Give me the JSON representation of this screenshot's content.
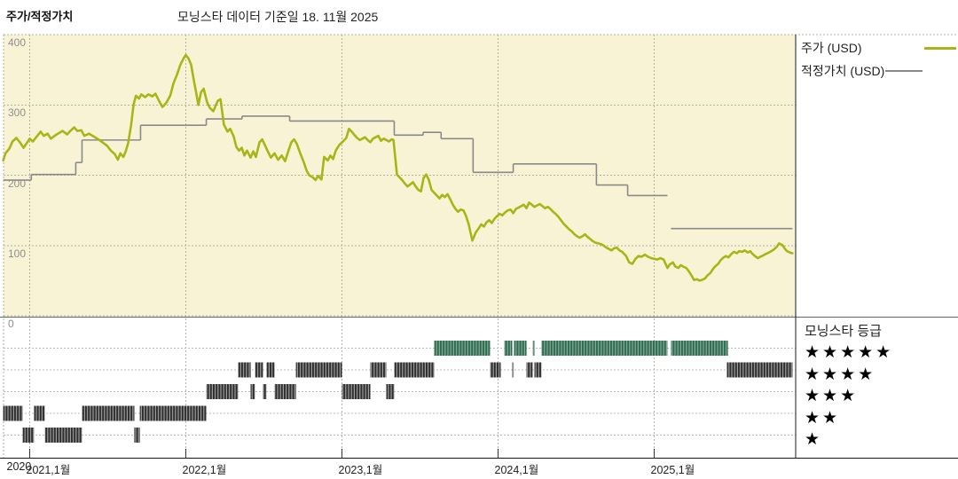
{
  "header": {
    "title": "주가/적정가치",
    "as_of": "모닝스타 데이터 기준일 18. 11월 2025"
  },
  "chart_data": {
    "type": "line",
    "title": "주가/적정가치",
    "as_of_label": "모닝스타 데이터 기준일 18. 11월 2025",
    "x_axis": {
      "range": [
        2020.82,
        2025.95
      ],
      "gridline_years": [
        2021,
        2022,
        2023,
        2024,
        2025
      ],
      "labels": [
        {
          "t": 2020.875,
          "text": "2020"
        },
        {
          "t": 2021.0,
          "text": "2021,1월"
        },
        {
          "t": 2022.0,
          "text": "2022,1월"
        },
        {
          "t": 2023.0,
          "text": "2023,1월"
        },
        {
          "t": 2024.0,
          "text": "2024,1월"
        },
        {
          "t": 2025.0,
          "text": "2025,1월"
        }
      ]
    },
    "y_axis": {
      "ticks": [
        0,
        100,
        200,
        300,
        400
      ],
      "range": [
        0,
        440
      ],
      "unit": "USD"
    },
    "colors": {
      "plot_bg": "#f7f3d4",
      "grid": "#b2b2a6",
      "price": "#a9b516",
      "fair_value": "#8a8a8a",
      "rating_five_stripe": "#2f6b51",
      "rating_five_bg": "#84ac98",
      "rating_other_stripe": "#2d2d2d",
      "rating_other_bg": "#9f9f9f",
      "axis": "#1a1a1a"
    },
    "price": {
      "name": "주가 (USD)",
      "points": [
        [
          2020.83,
          221
        ],
        [
          2020.845,
          231
        ],
        [
          2020.87,
          238
        ],
        [
          2020.89,
          248
        ],
        [
          2020.915,
          253
        ],
        [
          2020.94,
          246
        ],
        [
          2020.96,
          239
        ],
        [
          2020.985,
          247
        ],
        [
          2021.0,
          252
        ],
        [
          2021.02,
          248
        ],
        [
          2021.045,
          255
        ],
        [
          2021.07,
          262
        ],
        [
          2021.09,
          256
        ],
        [
          2021.115,
          259
        ],
        [
          2021.135,
          252
        ],
        [
          2021.16,
          256
        ],
        [
          2021.18,
          259
        ],
        [
          2021.21,
          263
        ],
        [
          2021.24,
          258
        ],
        [
          2021.26,
          263
        ],
        [
          2021.285,
          268
        ],
        [
          2021.305,
          263
        ],
        [
          2021.33,
          264
        ],
        [
          2021.35,
          256
        ],
        [
          2021.38,
          259
        ],
        [
          2021.41,
          255
        ],
        [
          2021.44,
          251
        ],
        [
          2021.465,
          247
        ],
        [
          2021.495,
          242
        ],
        [
          2021.52,
          235
        ],
        [
          2021.545,
          230
        ],
        [
          2021.565,
          222
        ],
        [
          2021.58,
          231
        ],
        [
          2021.6,
          226
        ],
        [
          2021.615,
          234
        ],
        [
          2021.63,
          245
        ],
        [
          2021.65,
          272
        ],
        [
          2021.665,
          300
        ],
        [
          2021.68,
          313
        ],
        [
          2021.7,
          309
        ],
        [
          2021.715,
          315
        ],
        [
          2021.74,
          311
        ],
        [
          2021.76,
          315
        ],
        [
          2021.785,
          312
        ],
        [
          2021.805,
          316
        ],
        [
          2021.83,
          305
        ],
        [
          2021.85,
          297
        ],
        [
          2021.875,
          303
        ],
        [
          2021.9,
          313
        ],
        [
          2021.92,
          330
        ],
        [
          2021.945,
          344
        ],
        [
          2021.965,
          357
        ],
        [
          2021.985,
          366
        ],
        [
          2022.0,
          371
        ],
        [
          2022.017,
          366
        ],
        [
          2022.034,
          357
        ],
        [
          2022.051,
          335
        ],
        [
          2022.068,
          315
        ],
        [
          2022.08,
          300
        ],
        [
          2022.097,
          318
        ],
        [
          2022.114,
          323
        ],
        [
          2022.136,
          304
        ],
        [
          2022.153,
          296
        ],
        [
          2022.176,
          291
        ],
        [
          2022.205,
          306
        ],
        [
          2022.222,
          308
        ],
        [
          2022.244,
          272
        ],
        [
          2022.267,
          262
        ],
        [
          2022.284,
          266
        ],
        [
          2022.307,
          255
        ],
        [
          2022.324,
          240
        ],
        [
          2022.341,
          235
        ],
        [
          2022.358,
          239
        ],
        [
          2022.375,
          228
        ],
        [
          2022.392,
          235
        ],
        [
          2022.415,
          225
        ],
        [
          2022.432,
          234
        ],
        [
          2022.449,
          226
        ],
        [
          2022.472,
          247
        ],
        [
          2022.489,
          251
        ],
        [
          2022.506,
          243
        ],
        [
          2022.523,
          235
        ],
        [
          2022.545,
          225
        ],
        [
          2022.568,
          231
        ],
        [
          2022.591,
          222
        ],
        [
          2022.614,
          228
        ],
        [
          2022.636,
          220
        ],
        [
          2022.659,
          236
        ],
        [
          2022.676,
          247
        ],
        [
          2022.693,
          251
        ],
        [
          2022.71,
          245
        ],
        [
          2022.733,
          231
        ],
        [
          2022.756,
          218
        ],
        [
          2022.773,
          207
        ],
        [
          2022.79,
          200
        ],
        [
          2022.813,
          197
        ],
        [
          2022.83,
          193
        ],
        [
          2022.847,
          199
        ],
        [
          2022.869,
          194
        ],
        [
          2022.886,
          226
        ],
        [
          2022.909,
          221
        ],
        [
          2022.926,
          228
        ],
        [
          2022.943,
          223
        ],
        [
          2022.96,
          235
        ],
        [
          2022.983,
          243
        ],
        [
          2023.006,
          248
        ],
        [
          2023.028,
          253
        ],
        [
          2023.045,
          266
        ],
        [
          2023.063,
          262
        ],
        [
          2023.08,
          257
        ],
        [
          2023.097,
          253
        ],
        [
          2023.114,
          250
        ],
        [
          2023.131,
          252
        ],
        [
          2023.148,
          254
        ],
        [
          2023.165,
          250
        ],
        [
          2023.182,
          247
        ],
        [
          2023.199,
          252
        ],
        [
          2023.216,
          254
        ],
        [
          2023.233,
          256
        ],
        [
          2023.25,
          249
        ],
        [
          2023.267,
          252
        ],
        [
          2023.284,
          250
        ],
        [
          2023.301,
          248
        ],
        [
          2023.318,
          251
        ],
        [
          2023.33,
          250
        ],
        [
          2023.341,
          226
        ],
        [
          2023.352,
          201
        ],
        [
          2023.369,
          197
        ],
        [
          2023.386,
          193
        ],
        [
          2023.403,
          188
        ],
        [
          2023.42,
          184
        ],
        [
          2023.438,
          187
        ],
        [
          2023.455,
          190
        ],
        [
          2023.472,
          184
        ],
        [
          2023.489,
          179
        ],
        [
          2023.506,
          177
        ],
        [
          2023.523,
          196
        ],
        [
          2023.54,
          201
        ],
        [
          2023.557,
          193
        ],
        [
          2023.574,
          179
        ],
        [
          2023.591,
          175
        ],
        [
          2023.608,
          171
        ],
        [
          2023.625,
          167
        ],
        [
          2023.642,
          172
        ],
        [
          2023.659,
          169
        ],
        [
          2023.676,
          173
        ],
        [
          2023.693,
          166
        ],
        [
          2023.71,
          158
        ],
        [
          2023.727,
          152
        ],
        [
          2023.744,
          148
        ],
        [
          2023.761,
          151
        ],
        [
          2023.778,
          150
        ],
        [
          2023.795,
          142
        ],
        [
          2023.812,
          130
        ],
        [
          2023.824,
          118
        ],
        [
          2023.835,
          107
        ],
        [
          2023.847,
          113
        ],
        [
          2023.858,
          119
        ],
        [
          2023.875,
          124
        ],
        [
          2023.892,
          130
        ],
        [
          2023.909,
          127
        ],
        [
          2023.926,
          133
        ],
        [
          2023.943,
          136
        ],
        [
          2023.96,
          132
        ],
        [
          2023.977,
          138
        ],
        [
          2023.994,
          142
        ],
        [
          2024.011,
          145
        ],
        [
          2024.028,
          143
        ],
        [
          2024.045,
          147
        ],
        [
          2024.063,
          150
        ],
        [
          2024.08,
          151
        ],
        [
          2024.097,
          146
        ],
        [
          2024.114,
          152
        ],
        [
          2024.131,
          154
        ],
        [
          2024.148,
          156
        ],
        [
          2024.165,
          158
        ],
        [
          2024.182,
          153
        ],
        [
          2024.199,
          161
        ],
        [
          2024.216,
          158
        ],
        [
          2024.233,
          155
        ],
        [
          2024.25,
          157
        ],
        [
          2024.267,
          159
        ],
        [
          2024.284,
          156
        ],
        [
          2024.301,
          153
        ],
        [
          2024.318,
          155
        ],
        [
          2024.335,
          152
        ],
        [
          2024.352,
          148
        ],
        [
          2024.369,
          145
        ],
        [
          2024.386,
          141
        ],
        [
          2024.403,
          136
        ],
        [
          2024.42,
          131
        ],
        [
          2024.438,
          127
        ],
        [
          2024.455,
          123
        ],
        [
          2024.472,
          120
        ],
        [
          2024.489,
          116
        ],
        [
          2024.506,
          113
        ],
        [
          2024.523,
          111
        ],
        [
          2024.54,
          113
        ],
        [
          2024.557,
          116
        ],
        [
          2024.574,
          112
        ],
        [
          2024.591,
          109
        ],
        [
          2024.608,
          106
        ],
        [
          2024.625,
          104
        ],
        [
          2024.642,
          103
        ],
        [
          2024.659,
          102
        ],
        [
          2024.676,
          100
        ],
        [
          2024.693,
          97
        ],
        [
          2024.71,
          95
        ],
        [
          2024.727,
          93
        ],
        [
          2024.744,
          96
        ],
        [
          2024.761,
          97
        ],
        [
          2024.778,
          93
        ],
        [
          2024.795,
          91
        ],
        [
          2024.82,
          85
        ],
        [
          2024.84,
          76
        ],
        [
          2024.86,
          74
        ],
        [
          2024.88,
          81
        ],
        [
          2024.9,
          85
        ],
        [
          2024.92,
          84
        ],
        [
          2024.94,
          87
        ],
        [
          2024.96,
          84
        ],
        [
          2024.98,
          82
        ],
        [
          2025.0,
          81
        ],
        [
          2025.02,
          80
        ],
        [
          2025.04,
          82
        ],
        [
          2025.06,
          80
        ],
        [
          2025.085,
          68
        ],
        [
          2025.1,
          73
        ],
        [
          2025.12,
          76
        ],
        [
          2025.135,
          70
        ],
        [
          2025.155,
          68
        ],
        [
          2025.17,
          72
        ],
        [
          2025.185,
          70
        ],
        [
          2025.205,
          68
        ],
        [
          2025.22,
          64
        ],
        [
          2025.24,
          57
        ],
        [
          2025.255,
          51
        ],
        [
          2025.275,
          52
        ],
        [
          2025.29,
          50
        ],
        [
          2025.305,
          51
        ],
        [
          2025.325,
          53
        ],
        [
          2025.34,
          57
        ],
        [
          2025.36,
          61
        ],
        [
          2025.375,
          66
        ],
        [
          2025.39,
          70
        ],
        [
          2025.41,
          74
        ],
        [
          2025.425,
          79
        ],
        [
          2025.445,
          83
        ],
        [
          2025.46,
          85
        ],
        [
          2025.475,
          83
        ],
        [
          2025.495,
          88
        ],
        [
          2025.51,
          91
        ],
        [
          2025.53,
          89
        ],
        [
          2025.545,
          92
        ],
        [
          2025.565,
          91
        ],
        [
          2025.58,
          93
        ],
        [
          2025.6,
          90
        ],
        [
          2025.615,
          92
        ],
        [
          2025.63,
          88
        ],
        [
          2025.65,
          84
        ],
        [
          2025.665,
          82
        ],
        [
          2025.68,
          84
        ],
        [
          2025.7,
          86
        ],
        [
          2025.715,
          88
        ],
        [
          2025.735,
          90
        ],
        [
          2025.75,
          92
        ],
        [
          2025.765,
          94
        ],
        [
          2025.785,
          98
        ],
        [
          2025.8,
          103
        ],
        [
          2025.82,
          101
        ],
        [
          2025.835,
          96
        ],
        [
          2025.85,
          92
        ],
        [
          2025.87,
          90
        ],
        [
          2025.885,
          89
        ]
      ]
    },
    "fair_value": {
      "name": "적정가치 (USD)",
      "segments": [
        [
          2020.83,
          2021.01,
          193
        ],
        [
          2021.01,
          2021.295,
          201
        ],
        [
          2021.295,
          2021.335,
          218
        ],
        [
          2021.335,
          2021.71,
          250
        ],
        [
          2021.71,
          2022.131,
          271
        ],
        [
          2022.131,
          2022.36,
          280
        ],
        [
          2022.36,
          2022.665,
          284
        ],
        [
          2022.665,
          2023.335,
          277
        ],
        [
          2023.335,
          2023.52,
          257
        ],
        [
          2023.52,
          2023.635,
          261
        ],
        [
          2023.635,
          2023.84,
          252
        ],
        [
          2023.84,
          2024.097,
          204
        ],
        [
          2024.097,
          2024.63,
          216
        ],
        [
          2024.63,
          2024.83,
          186
        ],
        [
          2024.83,
          2025.085,
          171
        ],
        [
          2025.108,
          2025.886,
          124
        ]
      ]
    },
    "ratings": {
      "legend_title": "모닝스타 등급",
      "rows": [
        5,
        4,
        3,
        2,
        1
      ],
      "segments": [
        [
          2020.83,
          2020.955,
          2
        ],
        [
          2020.955,
          2021.028,
          1
        ],
        [
          2021.028,
          2021.097,
          2
        ],
        [
          2021.097,
          2021.335,
          1
        ],
        [
          2021.335,
          2021.67,
          2
        ],
        [
          2021.67,
          2021.705,
          1
        ],
        [
          2021.705,
          2022.131,
          2
        ],
        [
          2022.131,
          2022.335,
          3
        ],
        [
          2022.335,
          2022.415,
          4
        ],
        [
          2022.415,
          2022.443,
          3
        ],
        [
          2022.443,
          2022.494,
          4
        ],
        [
          2022.494,
          2022.517,
          3
        ],
        [
          2022.517,
          2022.568,
          4
        ],
        [
          2022.568,
          2022.705,
          3
        ],
        [
          2022.705,
          2023.0,
          4
        ],
        [
          2023.0,
          2023.182,
          3
        ],
        [
          2023.182,
          2023.284,
          4
        ],
        [
          2023.284,
          2023.335,
          3
        ],
        [
          2023.335,
          2023.591,
          4
        ],
        [
          2023.591,
          2023.949,
          5
        ],
        [
          2023.949,
          2024.017,
          4
        ],
        [
          2024.04,
          2024.091,
          5
        ],
        [
          2024.091,
          2024.098,
          4
        ],
        [
          2024.102,
          2024.182,
          5
        ],
        [
          2024.182,
          2024.222,
          4
        ],
        [
          2024.222,
          2024.233,
          5
        ],
        [
          2024.233,
          2024.278,
          4
        ],
        [
          2024.278,
          2025.085,
          5
        ],
        [
          2025.108,
          2025.472,
          5
        ],
        [
          2025.466,
          2025.886,
          4
        ]
      ]
    }
  }
}
